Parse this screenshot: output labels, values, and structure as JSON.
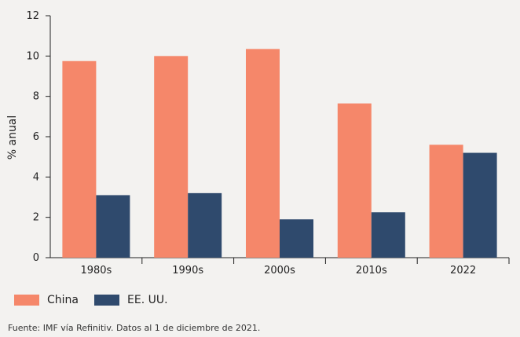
{
  "chart_data": {
    "type": "bar",
    "categories": [
      "1980s",
      "1990s",
      "2000s",
      "2010s",
      "2022"
    ],
    "series": [
      {
        "name": "China",
        "values": [
          9.75,
          10.0,
          10.35,
          7.65,
          5.6
        ],
        "color": "#f5876a"
      },
      {
        "name": "EE. UU.",
        "values": [
          3.1,
          3.2,
          1.9,
          2.25,
          5.2
        ],
        "color": "#2f4a6d"
      }
    ],
    "title": "",
    "xlabel": "",
    "ylabel": "% anual",
    "ylim": [
      0,
      12
    ],
    "yticks": [
      "0",
      "2",
      "4",
      "6",
      "8",
      "10",
      "12"
    ],
    "grid": false,
    "legend_position": "bottom-left"
  },
  "legend": {
    "china_label": "China",
    "usa_label": "EE. UU."
  },
  "source": "Fuente: IMF vía Refinitiv. Datos al 1 de diciembre de 2021."
}
